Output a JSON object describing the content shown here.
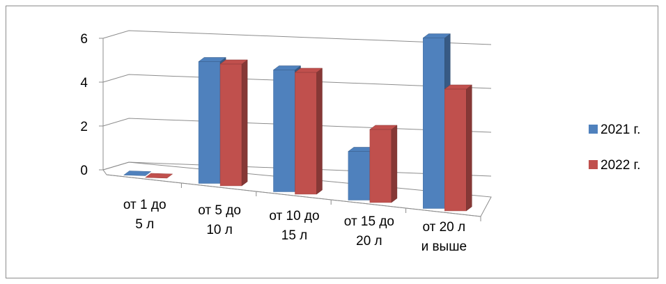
{
  "chart_data": {
    "type": "bar",
    "style": "3d-clustered-column",
    "categories": [
      [
        "от 1 до",
        "5 л"
      ],
      [
        "от 5 до",
        "10 л"
      ],
      [
        "от 10 до",
        "15 л"
      ],
      [
        "от 15 до",
        "20 л"
      ],
      [
        "от 20 л",
        "и выше"
      ]
    ],
    "series": [
      {
        "name": "2021 г.",
        "color": "#4f81bd",
        "values": [
          0,
          5,
          5,
          2,
          7
        ]
      },
      {
        "name": "2022 г.",
        "color": "#c0504d",
        "values": [
          0,
          5,
          5,
          3,
          5
        ]
      }
    ],
    "yticks": [
      "0",
      "2",
      "4",
      "6"
    ],
    "ylim": [
      0,
      6
    ],
    "grid": true,
    "legend_position": "right"
  }
}
